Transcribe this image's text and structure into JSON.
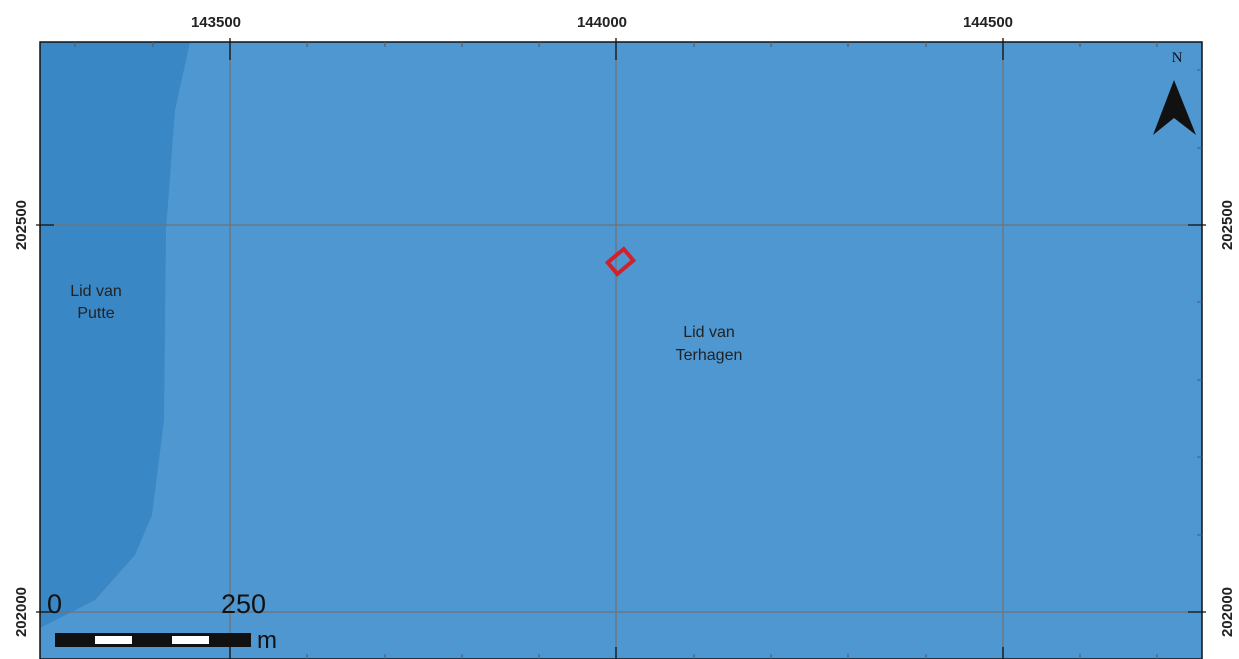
{
  "map": {
    "colors": {
      "unit_terhagen": "#4e97d1",
      "unit_putte": "#3a87c5",
      "grid_line": "#6f7378",
      "site_outline": "#d1212b",
      "frame": "#111111"
    },
    "grid": {
      "x_labels": [
        "143500",
        "144000",
        "144500"
      ],
      "y_labels": [
        "202500",
        "202000"
      ]
    },
    "units": [
      {
        "id": "putte",
        "line1": "Lid van",
        "line2": "Putte"
      },
      {
        "id": "terhagen",
        "line1": "Lid van",
        "line2": "Terhagen"
      }
    ],
    "north_arrow": {
      "label": "N",
      "icon": "north-arrow-icon"
    },
    "scale_bar": {
      "start_label": "0",
      "end_label": "250",
      "unit": "m"
    },
    "site_marker": {
      "icon": "site-outline-icon",
      "color": "#d1212b"
    }
  }
}
